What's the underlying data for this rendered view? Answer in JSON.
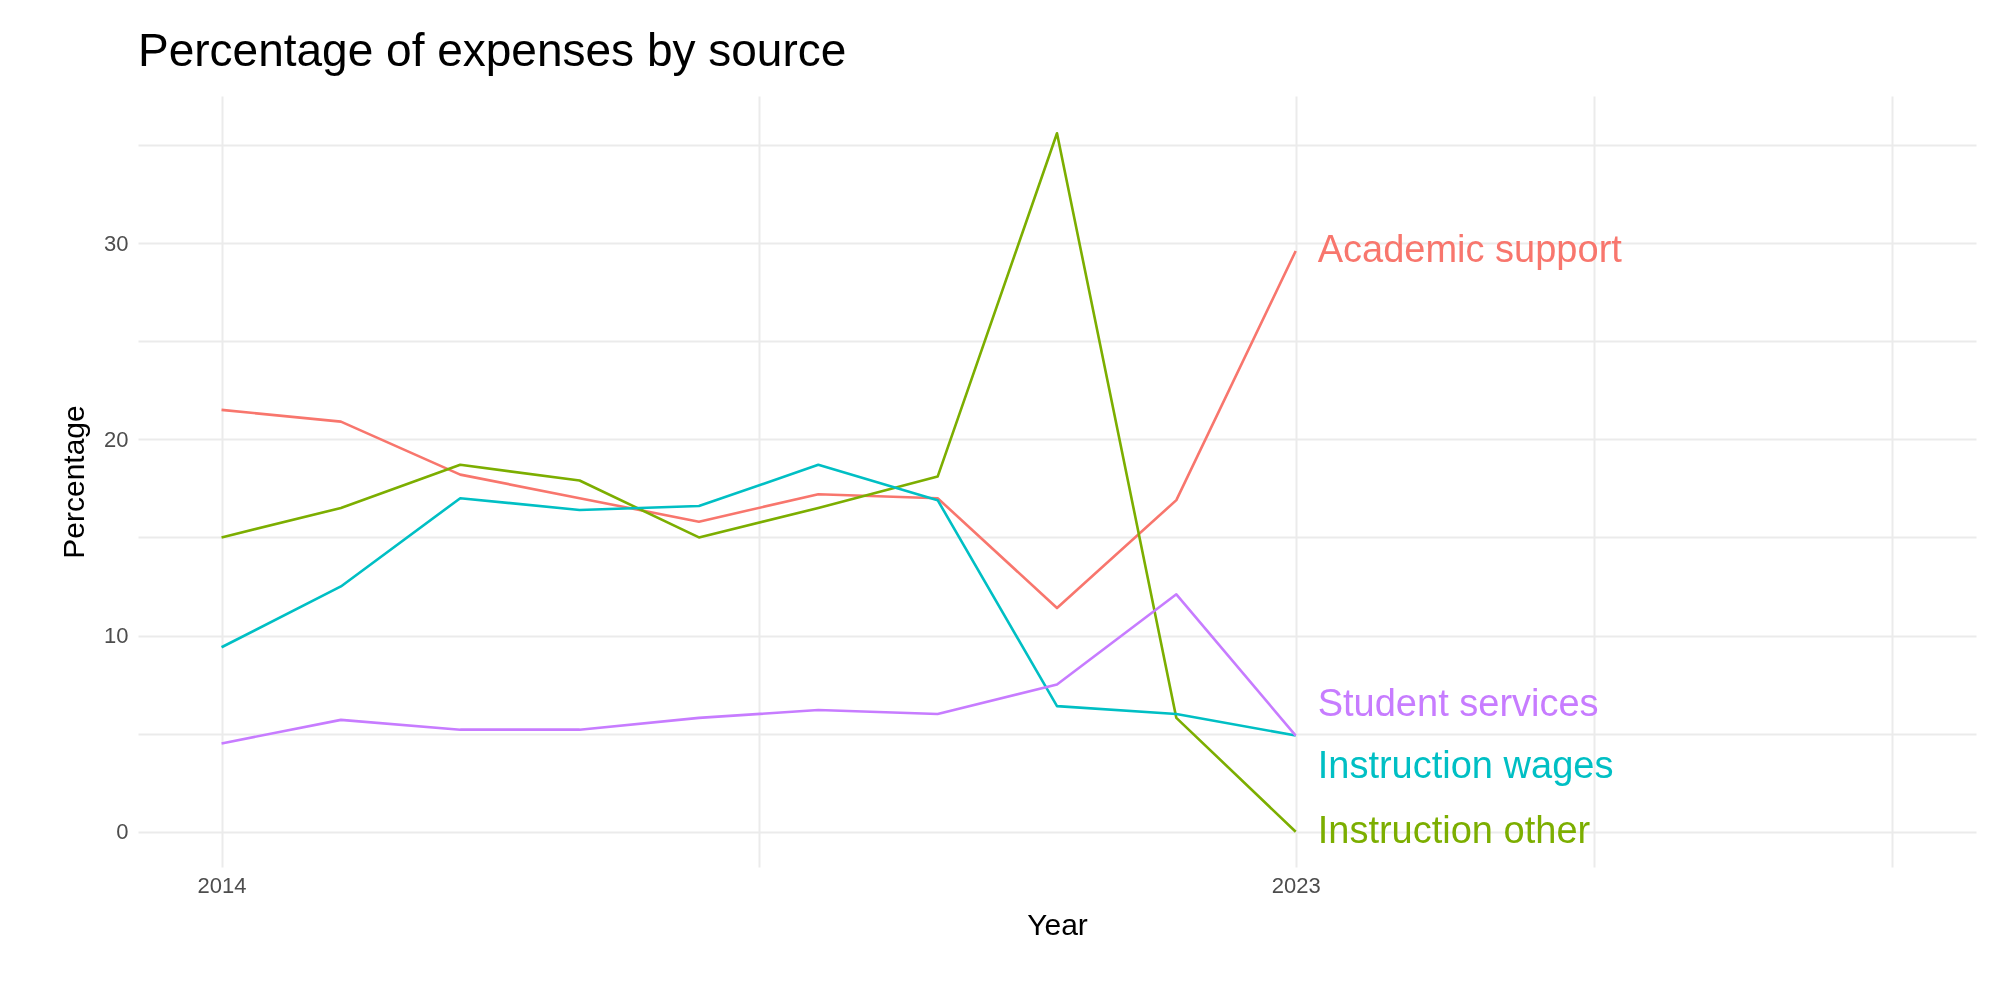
{
  "chart_data": {
    "type": "line",
    "title": "Percentage of expenses by source",
    "xlabel": "Year",
    "ylabel": "Percentage",
    "x": [
      2014,
      2015,
      2016,
      2017,
      2018,
      2019,
      2020,
      2021,
      2022,
      2023
    ],
    "xlim": [
      2013.3,
      2028.7
    ],
    "xticks": [
      2014,
      {
        "value": 2018.5,
        "label": null
      },
      2023,
      {
        "value": 2025.5,
        "label": null
      },
      {
        "value": 2028,
        "label": null
      }
    ],
    "ylim": [
      -1.8,
      37.5
    ],
    "yticks": [
      0,
      {
        "value": 5,
        "label": null
      },
      10,
      {
        "value": 15,
        "label": null
      },
      20,
      {
        "value": 25,
        "label": null
      },
      30,
      {
        "value": 35,
        "label": null
      }
    ],
    "grid": true,
    "legend": false,
    "series": [
      {
        "name": "Academic support",
        "color": "#f8766d",
        "values": [
          21.5,
          20.9,
          18.2,
          17.0,
          15.8,
          17.2,
          17.0,
          11.4,
          16.9,
          29.6
        ]
      },
      {
        "name": "Instruction other",
        "color": "#7cae00",
        "values": [
          15.0,
          16.5,
          18.7,
          17.9,
          15.0,
          16.5,
          18.1,
          35.6,
          5.8,
          0
        ]
      },
      {
        "name": "Instruction wages",
        "color": "#00bfc4",
        "values": [
          9.4,
          12.5,
          17.0,
          16.4,
          16.6,
          18.7,
          16.9,
          6.4,
          6.0,
          4.9
        ]
      },
      {
        "name": "Student services",
        "color": "#c77cff",
        "values": [
          4.5,
          5.7,
          5.2,
          5.2,
          5.8,
          6.2,
          6.0,
          7.5,
          12.1,
          4.9
        ]
      }
    ]
  }
}
